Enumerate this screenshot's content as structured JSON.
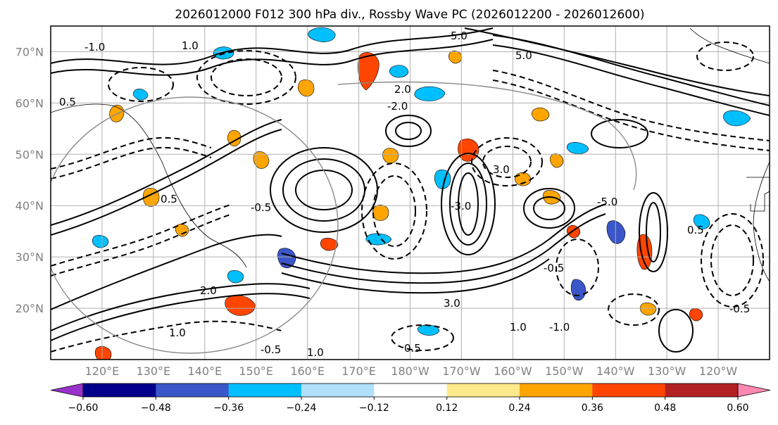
{
  "title": "2026012000 F012 300 hPa div., Rossby Wave PC (2026012200 - 2026012600)",
  "map": {
    "projection": "PlateCarree",
    "lon_range": [
      110,
      250
    ],
    "lat_range": [
      10,
      75
    ],
    "lat_ticks": [
      {
        "value": 70,
        "label": "70°N"
      },
      {
        "value": 60,
        "label": "60°N"
      },
      {
        "value": 50,
        "label": "50°N"
      },
      {
        "value": 40,
        "label": "40°N"
      },
      {
        "value": 30,
        "label": "30°N"
      },
      {
        "value": 20,
        "label": "20°N"
      }
    ],
    "lon_ticks": [
      {
        "value": 120,
        "label": "120°E"
      },
      {
        "value": 130,
        "label": "130°E"
      },
      {
        "value": 140,
        "label": "140°E"
      },
      {
        "value": 150,
        "label": "150°E"
      },
      {
        "value": 160,
        "label": "160°E"
      },
      {
        "value": 170,
        "label": "170°E"
      },
      {
        "value": 180,
        "label": "180°W"
      },
      {
        "value": 190,
        "label": "170°W"
      },
      {
        "value": 200,
        "label": "160°W"
      },
      {
        "value": 210,
        "label": "150°W"
      },
      {
        "value": 220,
        "label": "140°W"
      },
      {
        "value": 230,
        "label": "130°W"
      },
      {
        "value": 240,
        "label": "120°W"
      }
    ],
    "gridlines": true,
    "grid_color": "#b0b0b0",
    "contour_color": "#000000",
    "contour_labels": [
      "5.0",
      "3.0",
      "2.0",
      "1.0",
      "0.5",
      "-0.5",
      "-1.0",
      "-2.0",
      "-3.0",
      "-5.0"
    ]
  },
  "colorbar": {
    "levels": [
      -0.72,
      -0.6,
      -0.48,
      -0.36,
      -0.24,
      -0.12,
      0.12,
      0.24,
      0.36,
      0.48,
      0.6,
      0.72
    ],
    "colors": [
      "#9932cc",
      "#00008b",
      "#3a56c8",
      "#00bfff",
      "#b0e0fa",
      "#ffffff",
      "#ffe98a",
      "#ffa500",
      "#ff4500",
      "#b22222",
      "#ff88b0"
    ],
    "tick_values": [
      -0.6,
      -0.48,
      -0.36,
      -0.24,
      -0.12,
      0.12,
      0.24,
      0.36,
      0.48,
      0.6
    ],
    "tick_labels": [
      "−0.60",
      "−0.48",
      "−0.36",
      "−0.24",
      "−0.12",
      "0.12",
      "0.24",
      "0.36",
      "0.48",
      "0.60"
    ],
    "extend": "both"
  }
}
